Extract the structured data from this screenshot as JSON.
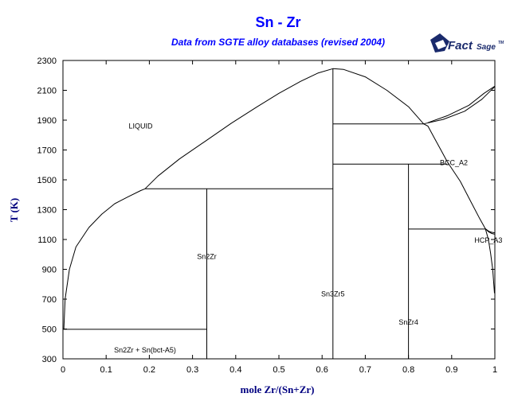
{
  "chart_data": {
    "type": "line",
    "title": "Sn - Zr",
    "subtitle": "Data from SGTE alloy databases (revised 2004)",
    "xlabel": "mole Zr/(Sn+Zr)",
    "ylabel": "T (K)",
    "xlim": [
      0,
      1
    ],
    "ylim": [
      300,
      2300
    ],
    "x_ticks": [
      "0",
      "0.1",
      "0.2",
      "0.3",
      "0.4",
      "0.5",
      "0.6",
      "0.7",
      "0.8",
      "0.9",
      "1"
    ],
    "y_ticks": [
      "300",
      "500",
      "700",
      "900",
      "1100",
      "1300",
      "1500",
      "1700",
      "1900",
      "2100",
      "2300"
    ],
    "grid": false,
    "logo": {
      "main": "Fact",
      "suffix": "Sage",
      "tm": "TM",
      "color": "#1a2a6c"
    },
    "colors": {
      "title": "#0000ff",
      "axis_label": "#000080",
      "lines": "#000000"
    },
    "region_labels": [
      {
        "text": "LIQUID",
        "x": 0.18,
        "y": 1860
      },
      {
        "text": "BCC_A2",
        "x": 0.905,
        "y": 1615
      },
      {
        "text": "HCP_A3",
        "x": 0.985,
        "y": 1095
      },
      {
        "text": "Sn2Zr",
        "x": 0.333,
        "y": 985
      },
      {
        "text": "Sn3Zr5",
        "x": 0.625,
        "y": 735
      },
      {
        "text": "SnZr4",
        "x": 0.8,
        "y": 545
      },
      {
        "text": "Sn2Zr + Sn(bct-A5)",
        "x": 0.19,
        "y": 360
      }
    ],
    "series": [
      {
        "points": [
          [
            0.002,
            498
          ],
          [
            0.005,
            700
          ],
          [
            0.015,
            900
          ],
          [
            0.03,
            1050
          ],
          [
            0.06,
            1180
          ],
          [
            0.09,
            1270
          ],
          [
            0.12,
            1340
          ],
          [
            0.15,
            1385
          ],
          [
            0.18,
            1428
          ],
          [
            0.19,
            1440
          ],
          [
            0.22,
            1525
          ],
          [
            0.27,
            1640
          ],
          [
            0.33,
            1760
          ],
          [
            0.39,
            1880
          ],
          [
            0.45,
            1990
          ],
          [
            0.5,
            2080
          ],
          [
            0.55,
            2160
          ],
          [
            0.59,
            2215
          ],
          [
            0.625,
            2245
          ],
          [
            0.65,
            2240
          ],
          [
            0.7,
            2190
          ],
          [
            0.75,
            2100
          ],
          [
            0.8,
            1990
          ],
          [
            0.835,
            1875
          ],
          [
            0.845,
            1860
          ],
          [
            0.86,
            1780
          ],
          [
            0.875,
            1700
          ],
          [
            0.89,
            1620
          ],
          [
            0.92,
            1490
          ],
          [
            0.945,
            1350
          ],
          [
            0.965,
            1240
          ],
          [
            0.978,
            1172
          ],
          [
            0.986,
            1155
          ],
          [
            0.993,
            1148
          ],
          [
            1.0,
            1145
          ]
        ]
      },
      {
        "points": [
          [
            0.835,
            1875
          ],
          [
            0.88,
            1905
          ],
          [
            0.93,
            1960
          ],
          [
            0.97,
            2040
          ],
          [
            1.0,
            2125
          ]
        ]
      },
      {
        "points": [
          [
            0.845,
            1883
          ],
          [
            0.89,
            1930
          ],
          [
            0.94,
            2000
          ],
          [
            0.975,
            2080
          ],
          [
            1.0,
            2128
          ]
        ]
      },
      {
        "points": [
          [
            0.978,
            1172
          ],
          [
            0.985,
            1100
          ],
          [
            0.99,
            1010
          ],
          [
            0.995,
            900
          ],
          [
            0.999,
            740
          ]
        ]
      },
      {
        "points": [
          [
            0.978,
            1172
          ],
          [
            0.986,
            1150
          ],
          [
            0.993,
            1140
          ],
          [
            1.0,
            1135
          ]
        ]
      },
      {
        "points": [
          [
            0.0,
            498
          ],
          [
            0.333,
            498
          ]
        ]
      },
      {
        "points": [
          [
            0.19,
            1440
          ],
          [
            0.625,
            1440
          ]
        ]
      },
      {
        "points": [
          [
            0.625,
            1875
          ],
          [
            0.835,
            1875
          ]
        ]
      },
      {
        "points": [
          [
            0.625,
            1605
          ],
          [
            0.89,
            1605
          ]
        ]
      },
      {
        "points": [
          [
            0.8,
            1170
          ],
          [
            0.978,
            1170
          ]
        ]
      },
      {
        "points": [
          [
            0.333,
            300
          ],
          [
            0.333,
            1440
          ]
        ]
      },
      {
        "points": [
          [
            0.625,
            300
          ],
          [
            0.625,
            2245
          ]
        ]
      },
      {
        "points": [
          [
            0.8,
            300
          ],
          [
            0.8,
            1605
          ]
        ]
      }
    ]
  }
}
